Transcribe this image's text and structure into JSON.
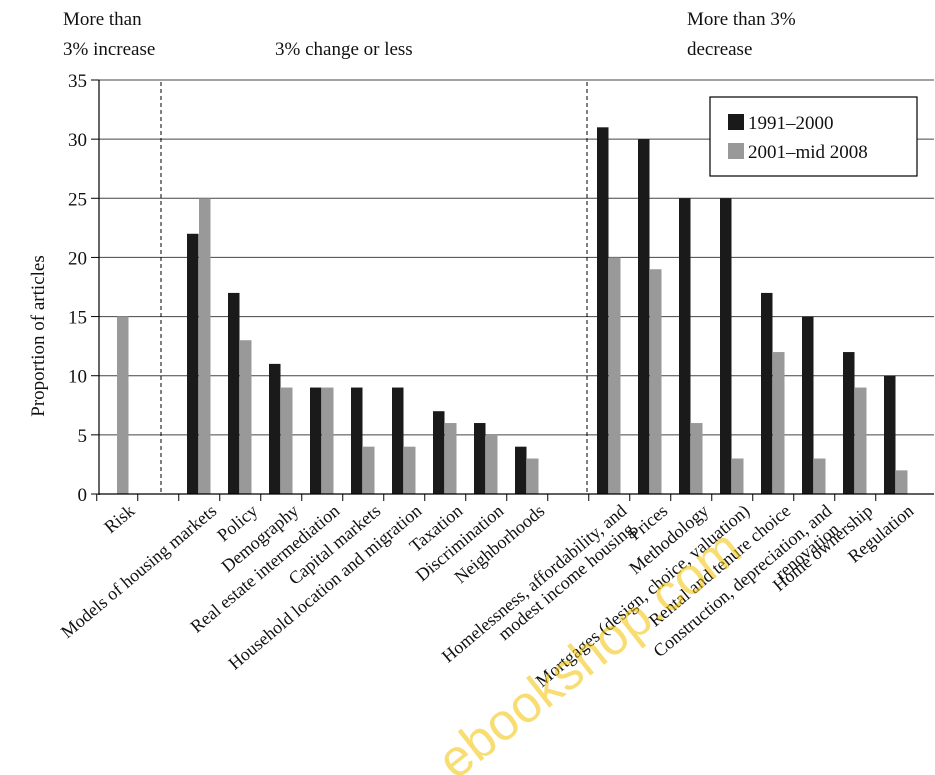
{
  "chart_data": {
    "type": "bar",
    "ylabel": "Proportion of articles",
    "ylim": [
      0,
      35
    ],
    "yticks": [
      "0",
      "5",
      "10",
      "15",
      "20",
      "25",
      "30",
      "35"
    ],
    "grid": true,
    "legend_position": "top-right",
    "groups": [
      {
        "label_lines": [
          "More than",
          "3% increase"
        ],
        "align": "left"
      },
      {
        "label_lines": [
          "3% change or less"
        ],
        "align": "left"
      },
      {
        "label_lines": [
          "More than 3%",
          "decrease"
        ],
        "align": "left"
      }
    ],
    "categories": [
      {
        "lines": [
          "Risk"
        ]
      },
      {
        "lines": []
      },
      {
        "lines": [
          "Models of housing markets"
        ]
      },
      {
        "lines": [
          "Policy"
        ]
      },
      {
        "lines": [
          "Demography"
        ]
      },
      {
        "lines": [
          "Real estate intermediation"
        ]
      },
      {
        "lines": [
          "Capital markets"
        ]
      },
      {
        "lines": [
          "Household location and migration"
        ]
      },
      {
        "lines": [
          "Taxation"
        ]
      },
      {
        "lines": [
          "Discrimination"
        ]
      },
      {
        "lines": [
          "Neighborhoods"
        ]
      },
      {
        "lines": []
      },
      {
        "lines": [
          "Homelessness, affordability, and",
          "modest income housing"
        ]
      },
      {
        "lines": [
          "Prices"
        ]
      },
      {
        "lines": [
          "Methodology"
        ]
      },
      {
        "lines": [
          "Mortgages (design, choice, valuation)"
        ]
      },
      {
        "lines": [
          "Rental and tenure choice"
        ]
      },
      {
        "lines": [
          "Construction, depreciation, and",
          "renovation"
        ]
      },
      {
        "lines": [
          "Home ownership"
        ]
      },
      {
        "lines": [
          "Regulation"
        ]
      }
    ],
    "series": [
      {
        "name": "1991–2000",
        "color": "#1a1a1a",
        "values": [
          0,
          null,
          22,
          17,
          11,
          9,
          9,
          9,
          7,
          6,
          4,
          null,
          31,
          30,
          25,
          25,
          17,
          15,
          12,
          10
        ]
      },
      {
        "name": "2001–mid 2008",
        "color": "#999999",
        "values": [
          15,
          null,
          25,
          13,
          9,
          9,
          4,
          4,
          6,
          5,
          3,
          null,
          20,
          19,
          6,
          3,
          12,
          3,
          9,
          2
        ]
      }
    ]
  },
  "watermark": "ebookshop.com"
}
